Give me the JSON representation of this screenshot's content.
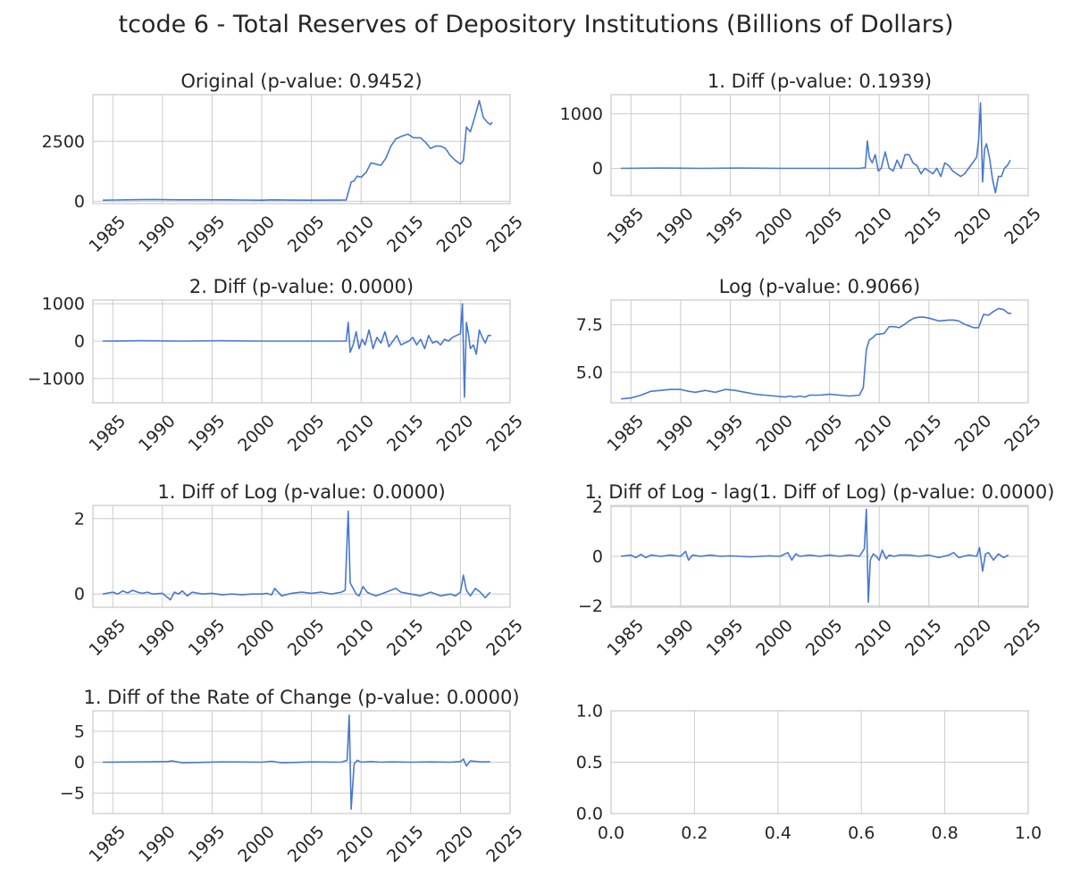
{
  "figure_title": "tcode 6 - Total Reserves of Depository Institutions (Billions of Dollars)",
  "line_color": "#4878d0",
  "chart_data": [
    {
      "type": "line",
      "title": "Original (p-value: 0.9452)",
      "xlabel": "",
      "ylabel": "",
      "xlim": [
        1983,
        2025
      ],
      "ylim": [
        -100,
        4450
      ],
      "xticks": [
        1985,
        1990,
        1995,
        2000,
        2005,
        2010,
        2015,
        2020,
        2025
      ],
      "yticks": [
        0,
        2500
      ],
      "ytick_labels": [
        "0",
        "2500"
      ],
      "grid": true,
      "x": [
        1984.0,
        1985.0,
        1987.0,
        1989.0,
        1990.0,
        1992.0,
        1994.0,
        1996.0,
        1998.0,
        2000.0,
        2001.0,
        2003.0,
        2005.0,
        2007.0,
        2008.5,
        2008.8,
        2009.0,
        2009.3,
        2009.6,
        2010.0,
        2010.5,
        2011.0,
        2011.5,
        2012.0,
        2012.5,
        2013.0,
        2013.5,
        2014.0,
        2014.7,
        2015.3,
        2016.0,
        2016.5,
        2017.0,
        2017.5,
        2018.0,
        2018.5,
        2019.0,
        2019.5,
        2020.0,
        2020.3,
        2020.6,
        2021.0,
        2021.5,
        2021.9,
        2022.3,
        2022.7,
        2023.0,
        2023.2
      ],
      "y": [
        40,
        50,
        60,
        70,
        65,
        55,
        60,
        55,
        50,
        40,
        55,
        45,
        40,
        45,
        50,
        500,
        800,
        850,
        1050,
        1000,
        1200,
        1600,
        1550,
        1500,
        1800,
        2300,
        2600,
        2700,
        2800,
        2650,
        2650,
        2450,
        2200,
        2300,
        2300,
        2200,
        1900,
        1700,
        1550,
        1700,
        3100,
        2900,
        3600,
        4200,
        3500,
        3300,
        3200,
        3300
      ]
    },
    {
      "type": "line",
      "title": "1. Diff (p-value: 0.1939)",
      "xlabel": "",
      "ylabel": "",
      "xlim": [
        1983,
        2025
      ],
      "ylim": [
        -500,
        1350
      ],
      "xticks": [
        1985,
        1990,
        1995,
        2000,
        2005,
        2010,
        2015,
        2020,
        2025
      ],
      "yticks": [
        0,
        1000
      ],
      "ytick_labels": [
        "0",
        "1000"
      ],
      "grid": true,
      "x": [
        1984.0,
        1988.0,
        1992.0,
        1996.0,
        2000.0,
        2004.0,
        2008.0,
        2008.6,
        2008.8,
        2009.0,
        2009.3,
        2009.6,
        2009.9,
        2010.2,
        2010.6,
        2011.0,
        2011.4,
        2011.8,
        2012.2,
        2012.6,
        2013.0,
        2013.4,
        2013.8,
        2014.2,
        2014.6,
        2015.0,
        2015.4,
        2015.8,
        2016.2,
        2016.6,
        2017.0,
        2017.4,
        2017.8,
        2018.2,
        2018.6,
        2019.0,
        2019.4,
        2019.8,
        2020.0,
        2020.2,
        2020.4,
        2020.6,
        2020.8,
        2021.1,
        2021.4,
        2021.7,
        2022.0,
        2022.3,
        2022.6,
        2022.9,
        2023.2
      ],
      "y": [
        0,
        5,
        0,
        5,
        0,
        0,
        0,
        10,
        500,
        200,
        100,
        250,
        -50,
        0,
        300,
        0,
        -50,
        150,
        0,
        250,
        250,
        100,
        50,
        -100,
        0,
        -50,
        -100,
        0,
        -150,
        100,
        50,
        -50,
        -100,
        -150,
        -100,
        0,
        100,
        200,
        500,
        1200,
        -250,
        350,
        450,
        200,
        -200,
        -450,
        -150,
        -150,
        0,
        50,
        150
      ]
    },
    {
      "type": "line",
      "title": "2. Diff (p-value: 0.0000)",
      "xlabel": "",
      "ylabel": "",
      "xlim": [
        1983,
        2025
      ],
      "ylim": [
        -1650,
        1100
      ],
      "xticks": [
        1985,
        1990,
        1995,
        2000,
        2005,
        2010,
        2015,
        2020,
        2025
      ],
      "yticks": [
        -1000,
        0,
        1000
      ],
      "ytick_labels": [
        "−1000",
        "0",
        "1000"
      ],
      "grid": true,
      "x": [
        1984.0,
        1988.0,
        1992.0,
        1996.0,
        2000.0,
        2004.0,
        2008.5,
        2008.7,
        2008.9,
        2009.2,
        2009.5,
        2009.8,
        2010.1,
        2010.4,
        2010.8,
        2011.2,
        2011.6,
        2012.0,
        2012.4,
        2012.8,
        2013.2,
        2013.6,
        2014.0,
        2014.4,
        2014.8,
        2015.2,
        2015.6,
        2016.0,
        2016.4,
        2016.8,
        2017.2,
        2017.6,
        2018.0,
        2018.4,
        2018.8,
        2019.2,
        2019.6,
        2020.0,
        2020.2,
        2020.4,
        2020.6,
        2020.8,
        2021.0,
        2021.3,
        2021.6,
        2021.9,
        2022.2,
        2022.5,
        2022.8,
        2023.1
      ],
      "y": [
        0,
        10,
        0,
        10,
        0,
        0,
        0,
        500,
        -300,
        -100,
        250,
        -200,
        50,
        -100,
        300,
        -200,
        100,
        -50,
        250,
        -150,
        0,
        150,
        -100,
        -50,
        0,
        100,
        -100,
        50,
        -200,
        150,
        -50,
        0,
        -100,
        50,
        0,
        100,
        150,
        200,
        1000,
        -1500,
        500,
        200,
        -200,
        -100,
        -350,
        300,
        100,
        -50,
        150,
        150
      ]
    },
    {
      "type": "line",
      "title": "Log (p-value: 0.9066)",
      "xlabel": "",
      "ylabel": "",
      "xlim": [
        1983,
        2025
      ],
      "ylim": [
        3.4,
        8.8
      ],
      "xticks": [
        1985,
        1990,
        1995,
        2000,
        2005,
        2010,
        2015,
        2020,
        2025
      ],
      "yticks": [
        5.0,
        7.5
      ],
      "ytick_labels": [
        "5.0",
        "7.5"
      ],
      "grid": true,
      "x": [
        1984.0,
        1985.0,
        1986.0,
        1987.0,
        1988.0,
        1989.0,
        1990.0,
        1990.8,
        1991.5,
        1992.5,
        1993.5,
        1994.5,
        1995.5,
        1996.5,
        1997.5,
        1998.5,
        1999.5,
        2000.5,
        2001.0,
        2001.5,
        2002.0,
        2002.5,
        2003.0,
        2004.0,
        2005.0,
        2006.0,
        2007.0,
        2008.0,
        2008.4,
        2008.7,
        2009.0,
        2009.3,
        2009.7,
        2010.0,
        2010.5,
        2011.0,
        2011.5,
        2012.0,
        2012.5,
        2013.0,
        2013.5,
        2014.0,
        2014.5,
        2015.0,
        2016.0,
        2017.0,
        2017.5,
        2018.0,
        2018.5,
        2019.0,
        2019.5,
        2020.0,
        2020.5,
        2021.0,
        2021.5,
        2022.0,
        2022.5,
        2023.0,
        2023.3
      ],
      "y": [
        3.6,
        3.65,
        3.8,
        4.0,
        4.05,
        4.1,
        4.1,
        4.0,
        3.95,
        4.05,
        3.95,
        4.1,
        4.05,
        3.95,
        3.85,
        3.8,
        3.75,
        3.7,
        3.75,
        3.7,
        3.75,
        3.7,
        3.8,
        3.8,
        3.85,
        3.8,
        3.75,
        3.8,
        4.2,
        6.2,
        6.7,
        6.8,
        7.0,
        7.0,
        7.05,
        7.4,
        7.4,
        7.35,
        7.5,
        7.7,
        7.85,
        7.9,
        7.9,
        7.85,
        7.7,
        7.75,
        7.75,
        7.7,
        7.55,
        7.45,
        7.35,
        7.35,
        8.05,
        8.0,
        8.2,
        8.35,
        8.3,
        8.1,
        8.1
      ]
    },
    {
      "type": "line",
      "title": "1. Diff of Log (p-value: 0.0000)",
      "xlabel": "",
      "ylabel": "",
      "xlim": [
        1983,
        2025
      ],
      "ylim": [
        -0.35,
        2.35
      ],
      "xticks": [
        1985,
        1990,
        1995,
        2000,
        2005,
        2010,
        2015,
        2020,
        2025
      ],
      "yticks": [
        0,
        2
      ],
      "ytick_labels": [
        "0",
        "2"
      ],
      "grid": true,
      "x": [
        1984.0,
        1985.0,
        1985.5,
        1986.0,
        1986.5,
        1987.0,
        1987.5,
        1988.0,
        1988.5,
        1989.0,
        1990.0,
        1990.8,
        1991.2,
        1991.6,
        1992.0,
        1992.5,
        1993.0,
        1994.0,
        1995.0,
        1996.0,
        1997.0,
        1998.0,
        1999.0,
        2000.0,
        2000.5,
        2001.0,
        2001.3,
        2002.0,
        2003.0,
        2004.0,
        2005.0,
        2006.0,
        2007.0,
        2008.0,
        2008.4,
        2008.7,
        2008.9,
        2009.2,
        2009.5,
        2009.8,
        2010.2,
        2010.6,
        2011.0,
        2011.5,
        2012.0,
        2012.5,
        2013.0,
        2013.5,
        2014.0,
        2015.0,
        2016.0,
        2017.0,
        2018.0,
        2019.0,
        2019.5,
        2020.0,
        2020.3,
        2020.6,
        2021.0,
        2021.5,
        2022.0,
        2022.5,
        2023.0
      ],
      "y": [
        0.0,
        0.05,
        0.0,
        0.08,
        0.03,
        0.1,
        0.05,
        0.02,
        0.05,
        0.0,
        0.02,
        -0.15,
        0.05,
        0.0,
        0.08,
        -0.05,
        0.05,
        0.0,
        0.02,
        -0.02,
        0.0,
        -0.02,
        0.0,
        0.0,
        0.02,
        -0.02,
        0.15,
        -0.05,
        0.02,
        0.05,
        0.02,
        0.05,
        0.0,
        0.05,
        0.1,
        2.2,
        0.3,
        0.15,
        0.0,
        -0.05,
        0.2,
        0.05,
        0.0,
        -0.05,
        0.0,
        0.05,
        0.1,
        0.15,
        0.05,
        0.0,
        -0.05,
        0.05,
        -0.05,
        0.0,
        -0.05,
        0.05,
        0.5,
        0.1,
        -0.05,
        0.15,
        0.05,
        -0.1,
        0.05
      ]
    },
    {
      "type": "line",
      "title": "1. Diff of Log - lag(1. Diff of Log) (p-value: 0.0000)",
      "xlabel": "",
      "ylabel": "",
      "xlim": [
        1983,
        2025
      ],
      "ylim": [
        -2.05,
        2.05
      ],
      "xticks": [
        1985,
        1990,
        1995,
        2000,
        2005,
        2010,
        2015,
        2020,
        2025
      ],
      "yticks": [
        -2,
        0,
        2
      ],
      "ytick_labels": [
        "−2",
        "0",
        "2"
      ],
      "grid": true,
      "x": [
        1984.0,
        1985.0,
        1985.5,
        1986.0,
        1986.5,
        1987.0,
        1988.0,
        1989.0,
        1990.0,
        1990.5,
        1990.8,
        1991.2,
        1992.0,
        1993.0,
        1994.0,
        1995.0,
        1996.0,
        1997.0,
        1998.0,
        1999.0,
        2000.0,
        2000.8,
        2001.2,
        2001.6,
        2002.0,
        2003.0,
        2004.0,
        2005.0,
        2006.0,
        2007.0,
        2008.0,
        2008.5,
        2008.7,
        2008.9,
        2009.1,
        2009.4,
        2009.7,
        2010.0,
        2010.3,
        2010.7,
        2011.0,
        2011.5,
        2012.0,
        2013.0,
        2014.0,
        2015.0,
        2016.0,
        2017.0,
        2017.5,
        2018.0,
        2019.0,
        2019.8,
        2020.1,
        2020.4,
        2020.7,
        2021.0,
        2021.5,
        2022.0,
        2022.5,
        2023.0
      ],
      "y": [
        0.0,
        0.05,
        -0.05,
        0.08,
        -0.05,
        0.05,
        0.0,
        0.05,
        0.0,
        0.2,
        -0.15,
        0.05,
        0.0,
        0.05,
        0.0,
        0.02,
        0.0,
        -0.02,
        0.0,
        0.02,
        0.0,
        0.15,
        -0.15,
        0.1,
        0.0,
        0.05,
        0.0,
        0.05,
        0.0,
        0.05,
        0.0,
        0.3,
        1.9,
        -1.85,
        -0.15,
        0.1,
        0.0,
        -0.15,
        0.25,
        -0.1,
        0.05,
        0.0,
        0.05,
        0.05,
        0.0,
        0.05,
        -0.05,
        0.05,
        0.15,
        -0.05,
        0.05,
        0.0,
        0.35,
        -0.6,
        0.1,
        0.15,
        -0.15,
        0.1,
        -0.05,
        0.05
      ]
    },
    {
      "type": "line",
      "title": "1. Diff of the Rate of Change (p-value: 0.0000)",
      "xlabel": "",
      "ylabel": "",
      "xlim": [
        1983,
        2025
      ],
      "ylim": [
        -8.3,
        8.3
      ],
      "xticks": [
        1985,
        1990,
        1995,
        2000,
        2005,
        2010,
        2015,
        2020,
        2025
      ],
      "yticks": [
        -5,
        0,
        5
      ],
      "ytick_labels": [
        "−5",
        "0",
        "5"
      ],
      "grid": true,
      "x": [
        1984.0,
        1988.0,
        1990.5,
        1991.0,
        1992.0,
        1996.0,
        2000.0,
        2001.0,
        2002.0,
        2005.0,
        2008.0,
        2008.6,
        2008.8,
        2009.0,
        2009.3,
        2009.6,
        2010.0,
        2011.0,
        2012.0,
        2013.0,
        2015.0,
        2017.0,
        2019.0,
        2020.0,
        2020.3,
        2020.6,
        2021.0,
        2022.0,
        2023.0
      ],
      "y": [
        0.0,
        0.05,
        0.1,
        0.2,
        -0.1,
        0.05,
        0.0,
        0.15,
        -0.1,
        0.05,
        0.0,
        0.3,
        7.6,
        -7.6,
        -0.3,
        0.3,
        0.0,
        0.1,
        0.0,
        0.05,
        0.0,
        0.05,
        0.0,
        0.1,
        0.5,
        -0.6,
        0.2,
        0.05,
        0.05
      ]
    },
    {
      "type": "line",
      "title": "",
      "xlabel": "",
      "ylabel": "",
      "xlim": [
        0,
        1
      ],
      "ylim": [
        0,
        1
      ],
      "xticks": [
        0.0,
        0.2,
        0.4,
        0.6,
        0.8,
        1.0
      ],
      "xtick_labels": [
        "0.0",
        "0.2",
        "0.4",
        "0.6",
        "0.8",
        "1.0"
      ],
      "yticks": [
        0.0,
        0.5,
        1.0
      ],
      "ytick_labels": [
        "0.0",
        "0.5",
        "1.0"
      ],
      "grid": true,
      "x": [],
      "y": []
    }
  ]
}
